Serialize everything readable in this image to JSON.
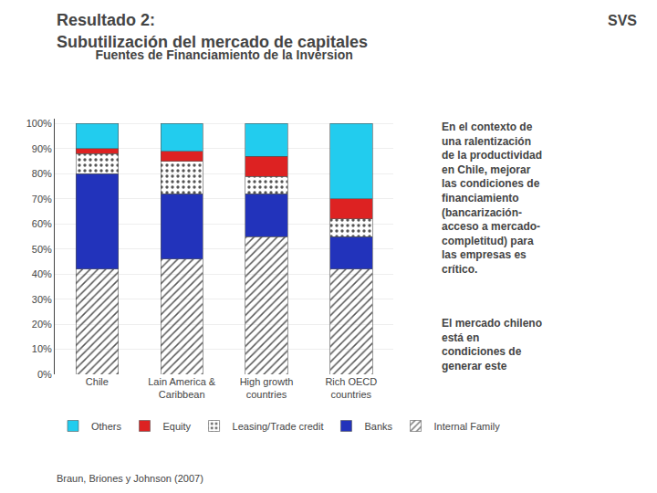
{
  "chart_data": {
    "type": "bar",
    "stacked": true,
    "title": "Fuentes de Financiamiento de la Inversion",
    "categories": [
      "Chile",
      "Lain America &\nCaribbean",
      "High growth\ncountries",
      "Rich OECD\ncountries"
    ],
    "series": [
      {
        "name": "Internal Family",
        "color": "#ffffff",
        "marker": "hatch",
        "values": [
          42,
          46,
          55,
          42
        ]
      },
      {
        "name": "Banks",
        "color": "#2233bb",
        "values": [
          38,
          26,
          17,
          13
        ]
      },
      {
        "name": "Leasing/Trade credit",
        "color": "#cc99dd",
        "marker": "dots",
        "values": [
          8,
          13,
          7,
          7
        ]
      },
      {
        "name": "Equity",
        "color": "#dd2222",
        "values": [
          2,
          4,
          8,
          8
        ]
      },
      {
        "name": "Others",
        "color": "#22ccee",
        "values": [
          10,
          11,
          13,
          30
        ]
      }
    ],
    "ylim": [
      0,
      102
    ],
    "yticks": [
      {
        "value": 0,
        "label": "0%"
      },
      {
        "value": 10,
        "label": "10%"
      },
      {
        "value": 20,
        "label": "20%"
      },
      {
        "value": 30,
        "label": "30%"
      },
      {
        "value": 40,
        "label": "40%"
      },
      {
        "value": 50,
        "label": "50%"
      },
      {
        "value": 60,
        "label": "60%"
      },
      {
        "value": 70,
        "label": "70%"
      },
      {
        "value": 80,
        "label": "80%"
      },
      {
        "value": 90,
        "label": "90%"
      },
      {
        "value": 100,
        "label": "100%"
      }
    ],
    "grid": true,
    "legend": "bottom",
    "annotations": [
      "Resultado 2:",
      "Subutilización del mercado de capitales",
      "SVS",
      "En el contexto de\nuna ralentización\nde la productividad\nen Chile, mejorar\nlas condiciones de\nfinanciamiento\n(bancarización-\nacceso a mercado-\ncompletitud) para\nlas empresas es\ncrítico.",
      "El mercado chileno\nestá en\ncondiciones de\ngenerar este",
      "Braun, Briones y Johnson (2007)"
    ]
  }
}
